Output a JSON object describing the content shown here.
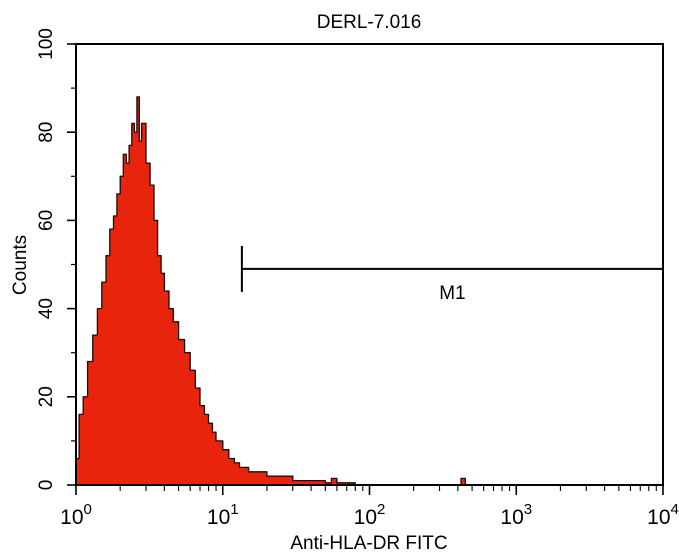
{
  "chart_data": {
    "type": "area",
    "title": "DERL-7.016",
    "xlabel": "Anti-HLA-DR FITC",
    "ylabel": "Counts",
    "xscale": "log",
    "xlim": [
      1,
      10000
    ],
    "ylim": [
      0,
      100
    ],
    "grid": false,
    "legend": "none",
    "x_ticks": [
      {
        "base": "10",
        "exp": "0",
        "value": 1
      },
      {
        "base": "10",
        "exp": "1",
        "value": 10
      },
      {
        "base": "10",
        "exp": "2",
        "value": 100
      },
      {
        "base": "10",
        "exp": "3",
        "value": 1000
      },
      {
        "base": "10",
        "exp": "4",
        "value": 10000
      }
    ],
    "y_ticks": [
      "0",
      "20",
      "40",
      "60",
      "80",
      "100"
    ],
    "fill_color": "#e8250c",
    "series": [
      {
        "x": [
          1.0,
          1.05,
          1.12,
          1.2,
          1.3,
          1.4,
          1.5,
          1.6,
          1.7,
          1.8,
          1.9,
          2.0,
          2.1,
          2.2,
          2.3,
          2.4,
          2.5,
          2.6,
          2.7,
          2.8,
          3.0,
          3.2,
          3.4,
          3.6,
          3.8,
          4.0,
          4.3,
          4.6,
          5.0,
          5.5,
          6.0,
          6.5,
          7.0,
          7.5,
          8.0,
          8.5,
          9.0,
          10.0,
          11.0,
          12.0,
          13.0,
          15.0,
          17.0,
          20.0,
          25.0,
          30.0,
          40.0,
          50.0,
          55.0,
          60.0,
          80.0,
          100.0,
          200.0,
          300.0,
          400.0,
          420.0,
          450.0,
          600.0,
          1000.0,
          3000.0,
          10000.0
        ],
        "y": [
          6,
          16,
          20,
          28,
          34,
          40,
          46,
          52,
          58,
          61,
          66,
          70,
          75,
          73,
          77,
          82,
          80,
          88,
          78,
          82,
          73,
          68,
          60,
          52,
          48,
          44,
          40,
          37,
          33,
          30,
          26,
          22,
          18,
          16,
          14,
          12,
          10,
          8,
          6,
          5,
          4,
          3,
          3,
          2,
          2,
          1,
          1,
          0.5,
          1.5,
          0.5,
          0,
          0,
          0,
          0,
          0,
          1.5,
          0,
          0,
          0,
          0,
          0
        ]
      }
    ],
    "annotations": [
      {
        "label": "M1",
        "x_start": 13.5,
        "x_end": 10000,
        "y": 49
      }
    ]
  }
}
